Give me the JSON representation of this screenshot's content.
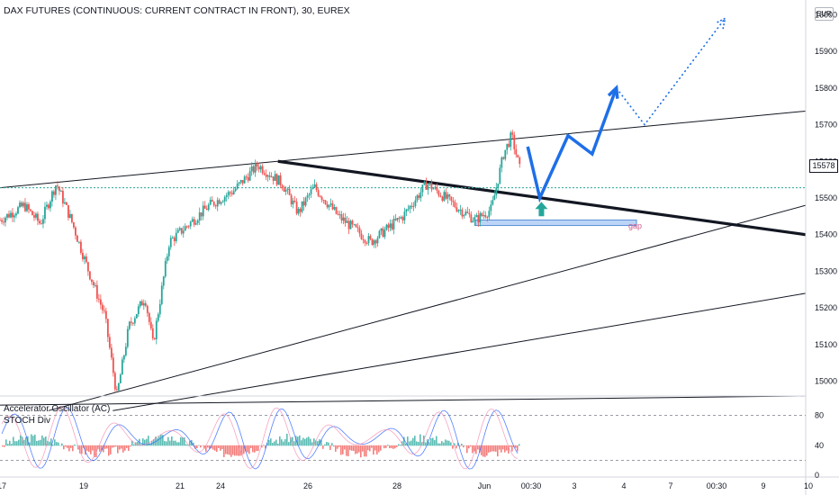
{
  "header": {
    "title": "DAX FUTURES (CONTINUOUS: CURRENT CONTRACT IN FRONT), 30, EUREX"
  },
  "price_axis": {
    "currency": "EUR",
    "last_price": "15578"
  },
  "indicators": [
    {
      "label": "Accelerator Oscillator (AC)"
    },
    {
      "label": "STOCH Div"
    }
  ],
  "annotations": {
    "gap_label": "gap"
  },
  "colors": {
    "up": "#26a69a",
    "down": "#ef5350",
    "projection": "#1e6fe8",
    "arrow": "#26a69a",
    "gap_zone": "#90b8f0",
    "dotted_level": "#26a69a"
  },
  "chart_data": [
    {
      "type": "candlestick",
      "title": "DAX FUTURES (CONTINUOUS: CURRENT CONTRACT IN FRONT), 30, EUREX",
      "y_unit": "EUR",
      "ylim": [
        14960,
        16040
      ],
      "y_ticks": [
        15000,
        15100,
        15200,
        15300,
        15400,
        15500,
        15600,
        15700,
        15800,
        15900,
        16000
      ],
      "x_tick_labels": [
        "17",
        "19",
        "21",
        "24",
        "26",
        "28",
        "Jun",
        "00:30",
        "3",
        "4",
        "7",
        "00:30",
        "9",
        "10"
      ],
      "last_price": 15578,
      "dotted_level": 15528,
      "close_path": [
        {
          "x": 0.0,
          "y": 15440
        },
        {
          "x": 0.03,
          "y": 15480
        },
        {
          "x": 0.05,
          "y": 15430
        },
        {
          "x": 0.07,
          "y": 15540
        },
        {
          "x": 0.09,
          "y": 15430
        },
        {
          "x": 0.11,
          "y": 15300
        },
        {
          "x": 0.13,
          "y": 15180
        },
        {
          "x": 0.145,
          "y": 14960
        },
        {
          "x": 0.16,
          "y": 15150
        },
        {
          "x": 0.18,
          "y": 15230
        },
        {
          "x": 0.19,
          "y": 15100
        },
        {
          "x": 0.21,
          "y": 15380
        },
        {
          "x": 0.24,
          "y": 15440
        },
        {
          "x": 0.26,
          "y": 15480
        },
        {
          "x": 0.29,
          "y": 15520
        },
        {
          "x": 0.32,
          "y": 15590
        },
        {
          "x": 0.35,
          "y": 15540
        },
        {
          "x": 0.37,
          "y": 15460
        },
        {
          "x": 0.39,
          "y": 15530
        },
        {
          "x": 0.42,
          "y": 15450
        },
        {
          "x": 0.46,
          "y": 15380
        },
        {
          "x": 0.5,
          "y": 15450
        },
        {
          "x": 0.53,
          "y": 15540
        },
        {
          "x": 0.57,
          "y": 15470
        },
        {
          "x": 0.59,
          "y": 15440
        },
        {
          "x": 0.61,
          "y": 15470
        },
        {
          "x": 0.625,
          "y": 15620
        },
        {
          "x": 0.635,
          "y": 15670
        },
        {
          "x": 0.645,
          "y": 15580
        }
      ],
      "trend_lines": [
        {
          "x1": 0.0,
          "y1": 15528,
          "x2": 1.0,
          "y2": 15737
        },
        {
          "x1": 0.345,
          "y1": 15600,
          "x2": 1.0,
          "y2": 15400
        },
        {
          "x1": 0.06,
          "y1": 14920,
          "x2": 1.0,
          "y2": 15480
        },
        {
          "x1": 0.14,
          "y1": 14920,
          "x2": 1.0,
          "y2": 15240
        },
        {
          "x1": 0.0,
          "y1": 14935,
          "x2": 1.0,
          "y2": 14960
        }
      ],
      "projection_path": [
        {
          "x": 0.655,
          "y": 15640
        },
        {
          "x": 0.67,
          "y": 15500
        },
        {
          "x": 0.705,
          "y": 15670
        },
        {
          "x": 0.735,
          "y": 15620
        },
        {
          "x": 0.765,
          "y": 15800
        }
      ],
      "projection_dotted": [
        {
          "x": 0.765,
          "y": 15800
        },
        {
          "x": 0.8,
          "y": 15700
        },
        {
          "x": 0.9,
          "y": 15990
        }
      ],
      "gap_zone": {
        "x1": 0.59,
        "x2": 0.79,
        "y_low": 15425,
        "y_high": 15440
      },
      "up_arrow": {
        "x": 0.672,
        "y": 15460
      }
    },
    {
      "type": "bar",
      "title": "Accelerator Oscillator (AC)",
      "ylim": [
        0,
        100
      ],
      "y_ticks": [
        0,
        40,
        80
      ],
      "levels": [
        20,
        80
      ],
      "stoch_lines": 2,
      "stoch_colors": [
        "#2962ff",
        "#f48fb1"
      ],
      "positive_color": "#26a69a",
      "negative_color": "#ef5350"
    }
  ]
}
